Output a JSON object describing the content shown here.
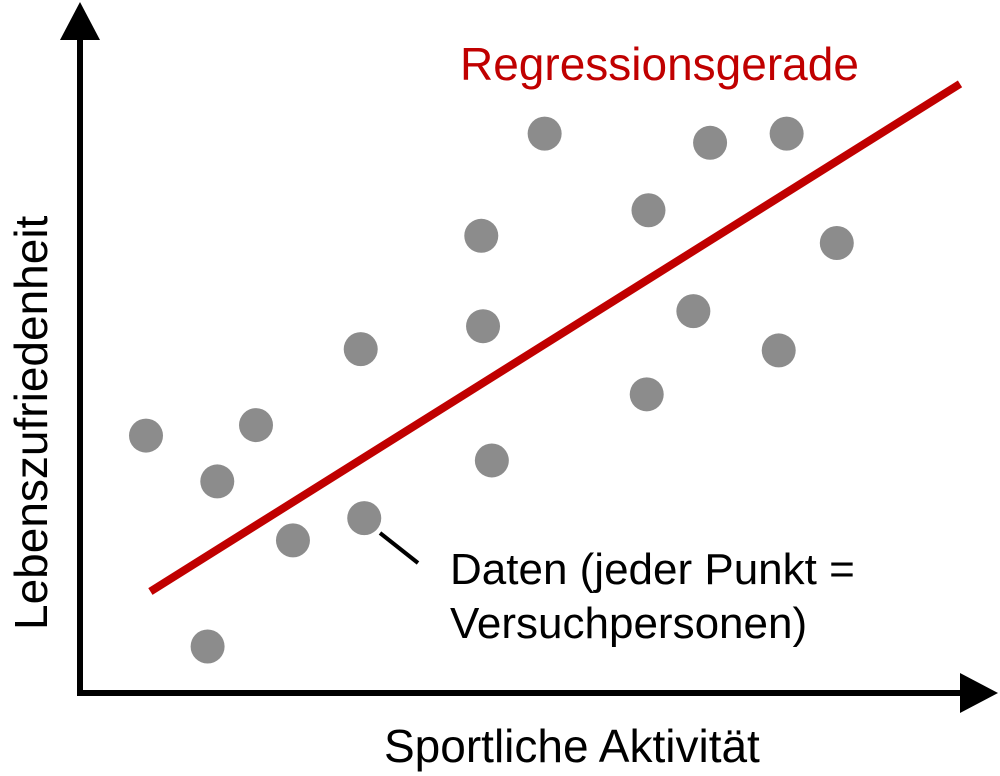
{
  "chart_data": {
    "type": "scatter",
    "title": "",
    "xlabel": "Sportliche Aktivität",
    "ylabel": "Lebenszufriedenheit",
    "xlim": [
      0,
      100
    ],
    "ylim": [
      0,
      100
    ],
    "grid": false,
    "points": [
      {
        "x": 7.5,
        "y": 39.3
      },
      {
        "x": 14.5,
        "y": 7.1
      },
      {
        "x": 15.6,
        "y": 32.3
      },
      {
        "x": 20.0,
        "y": 40.9
      },
      {
        "x": 24.2,
        "y": 23.3
      },
      {
        "x": 31.9,
        "y": 52.5
      },
      {
        "x": 32.3,
        "y": 26.7
      },
      {
        "x": 45.6,
        "y": 69.8
      },
      {
        "x": 45.8,
        "y": 56.0
      },
      {
        "x": 46.8,
        "y": 35.5
      },
      {
        "x": 52.8,
        "y": 85.4
      },
      {
        "x": 64.4,
        "y": 45.6
      },
      {
        "x": 64.6,
        "y": 73.7
      },
      {
        "x": 69.7,
        "y": 58.3
      },
      {
        "x": 71.6,
        "y": 84.0
      },
      {
        "x": 79.4,
        "y": 52.3
      },
      {
        "x": 80.3,
        "y": 85.4
      },
      {
        "x": 86.0,
        "y": 68.7
      }
    ],
    "regression_line": {
      "label": "Regressionsgerade",
      "start": {
        "x": 8.0,
        "y": 15.5
      },
      "end": {
        "x": 100.0,
        "y": 93.0
      }
    },
    "annotation": {
      "lines": [
        "Daten (jeder Punkt =",
        "Versuchpersonen)"
      ]
    }
  },
  "colors": {
    "axis": "#000000",
    "point": "#8c8c8c",
    "regression": "#c00000",
    "text": "#000000"
  }
}
